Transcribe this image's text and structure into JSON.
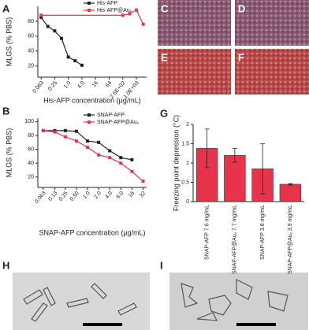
{
  "chart_data": [
    {
      "type": "line",
      "panel": "A",
      "ylabel": "MLGS (% PBS)",
      "xlabel": "His-AFP concentration (μg/mL)",
      "log_x": true,
      "legend": "upper right",
      "xlim": [
        0.045,
        2900
      ],
      "ylim": [
        5,
        100
      ],
      "yticks": [
        20,
        40,
        60,
        80
      ],
      "xticks": [
        0.063,
        0.25,
        {
          "value": 1,
          "label": "1.0"
        },
        {
          "value": 4,
          "label": "4.0"
        },
        16,
        64,
        {
          "value": 256,
          "label": "2.6E+02"
        },
        {
          "value": 1024,
          "label": "1.0E+03"
        }
      ],
      "series": [
        {
          "name": "His-AFP",
          "color": "#222222",
          "x": [
            0.063,
            0.125,
            0.25,
            0.5,
            1,
            2,
            4
          ],
          "values": [
            85,
            73,
            67,
            57,
            32,
            27,
            21
          ]
        },
        {
          "name": "His-AFP@Auₓ",
          "color": "#e8344a",
          "x": [
            0.063,
            256,
            512,
            1024,
            2048
          ],
          "values": [
            88,
            88,
            90,
            95,
            76
          ]
        }
      ]
    },
    {
      "type": "line",
      "panel": "B",
      "ylabel": "MLGS (% PBS)",
      "xlabel": "SNAP-AFP concentration (μg/mL)",
      "log_x": true,
      "legend": "upper right",
      "xlim": [
        0.045,
        40
      ],
      "ylim": [
        5,
        105
      ],
      "yticks": [
        20,
        40,
        60,
        80,
        100
      ],
      "xticks": [
        0.063,
        0.13,
        0.25,
        {
          "value": 0.5,
          "label": "0.50"
        },
        {
          "value": 1,
          "label": "1.0"
        },
        {
          "value": 2,
          "label": "2.0"
        },
        {
          "value": 4,
          "label": "4.0"
        },
        {
          "value": 8,
          "label": "8.0"
        },
        16,
        32
      ],
      "series": [
        {
          "name": "SNAP-AFP",
          "color": "#222222",
          "x": [
            0.063,
            0.13,
            0.25,
            0.5,
            1,
            2,
            4,
            8,
            16
          ],
          "values": [
            87,
            87,
            87,
            86,
            72,
            70,
            58,
            48,
            45
          ]
        },
        {
          "name": "SNAP-AFP@Auₓ",
          "color": "#e8344a",
          "x": [
            0.063,
            0.13,
            0.25,
            0.5,
            1,
            2,
            4,
            8,
            16,
            32
          ],
          "values": [
            87,
            85,
            78,
            72,
            63,
            52,
            48,
            40,
            28,
            14
          ]
        }
      ]
    },
    {
      "type": "bar",
      "panel": "G",
      "ylabel": "Freezing point depression (°C)",
      "color": "#e8344a",
      "ylim": [
        0,
        2
      ],
      "yticks": [
        0,
        0.5,
        1,
        1.5,
        2
      ],
      "categories": [
        "SNAP-AFP 7.6 mg/mL",
        "SNAP-AFP@Auₓ 7.7 mg/mL",
        "SNAP-AFP 3.8 mg/mL",
        "SNAP-AFP@Auₓ 3.9 mg/mL"
      ],
      "values": [
        1.38,
        1.2,
        0.85,
        0.45
      ],
      "errors": [
        0.5,
        0.18,
        0.65,
        0.02
      ]
    }
  ],
  "image_panels": [
    "C",
    "D",
    "E",
    "F",
    "H",
    "I"
  ]
}
